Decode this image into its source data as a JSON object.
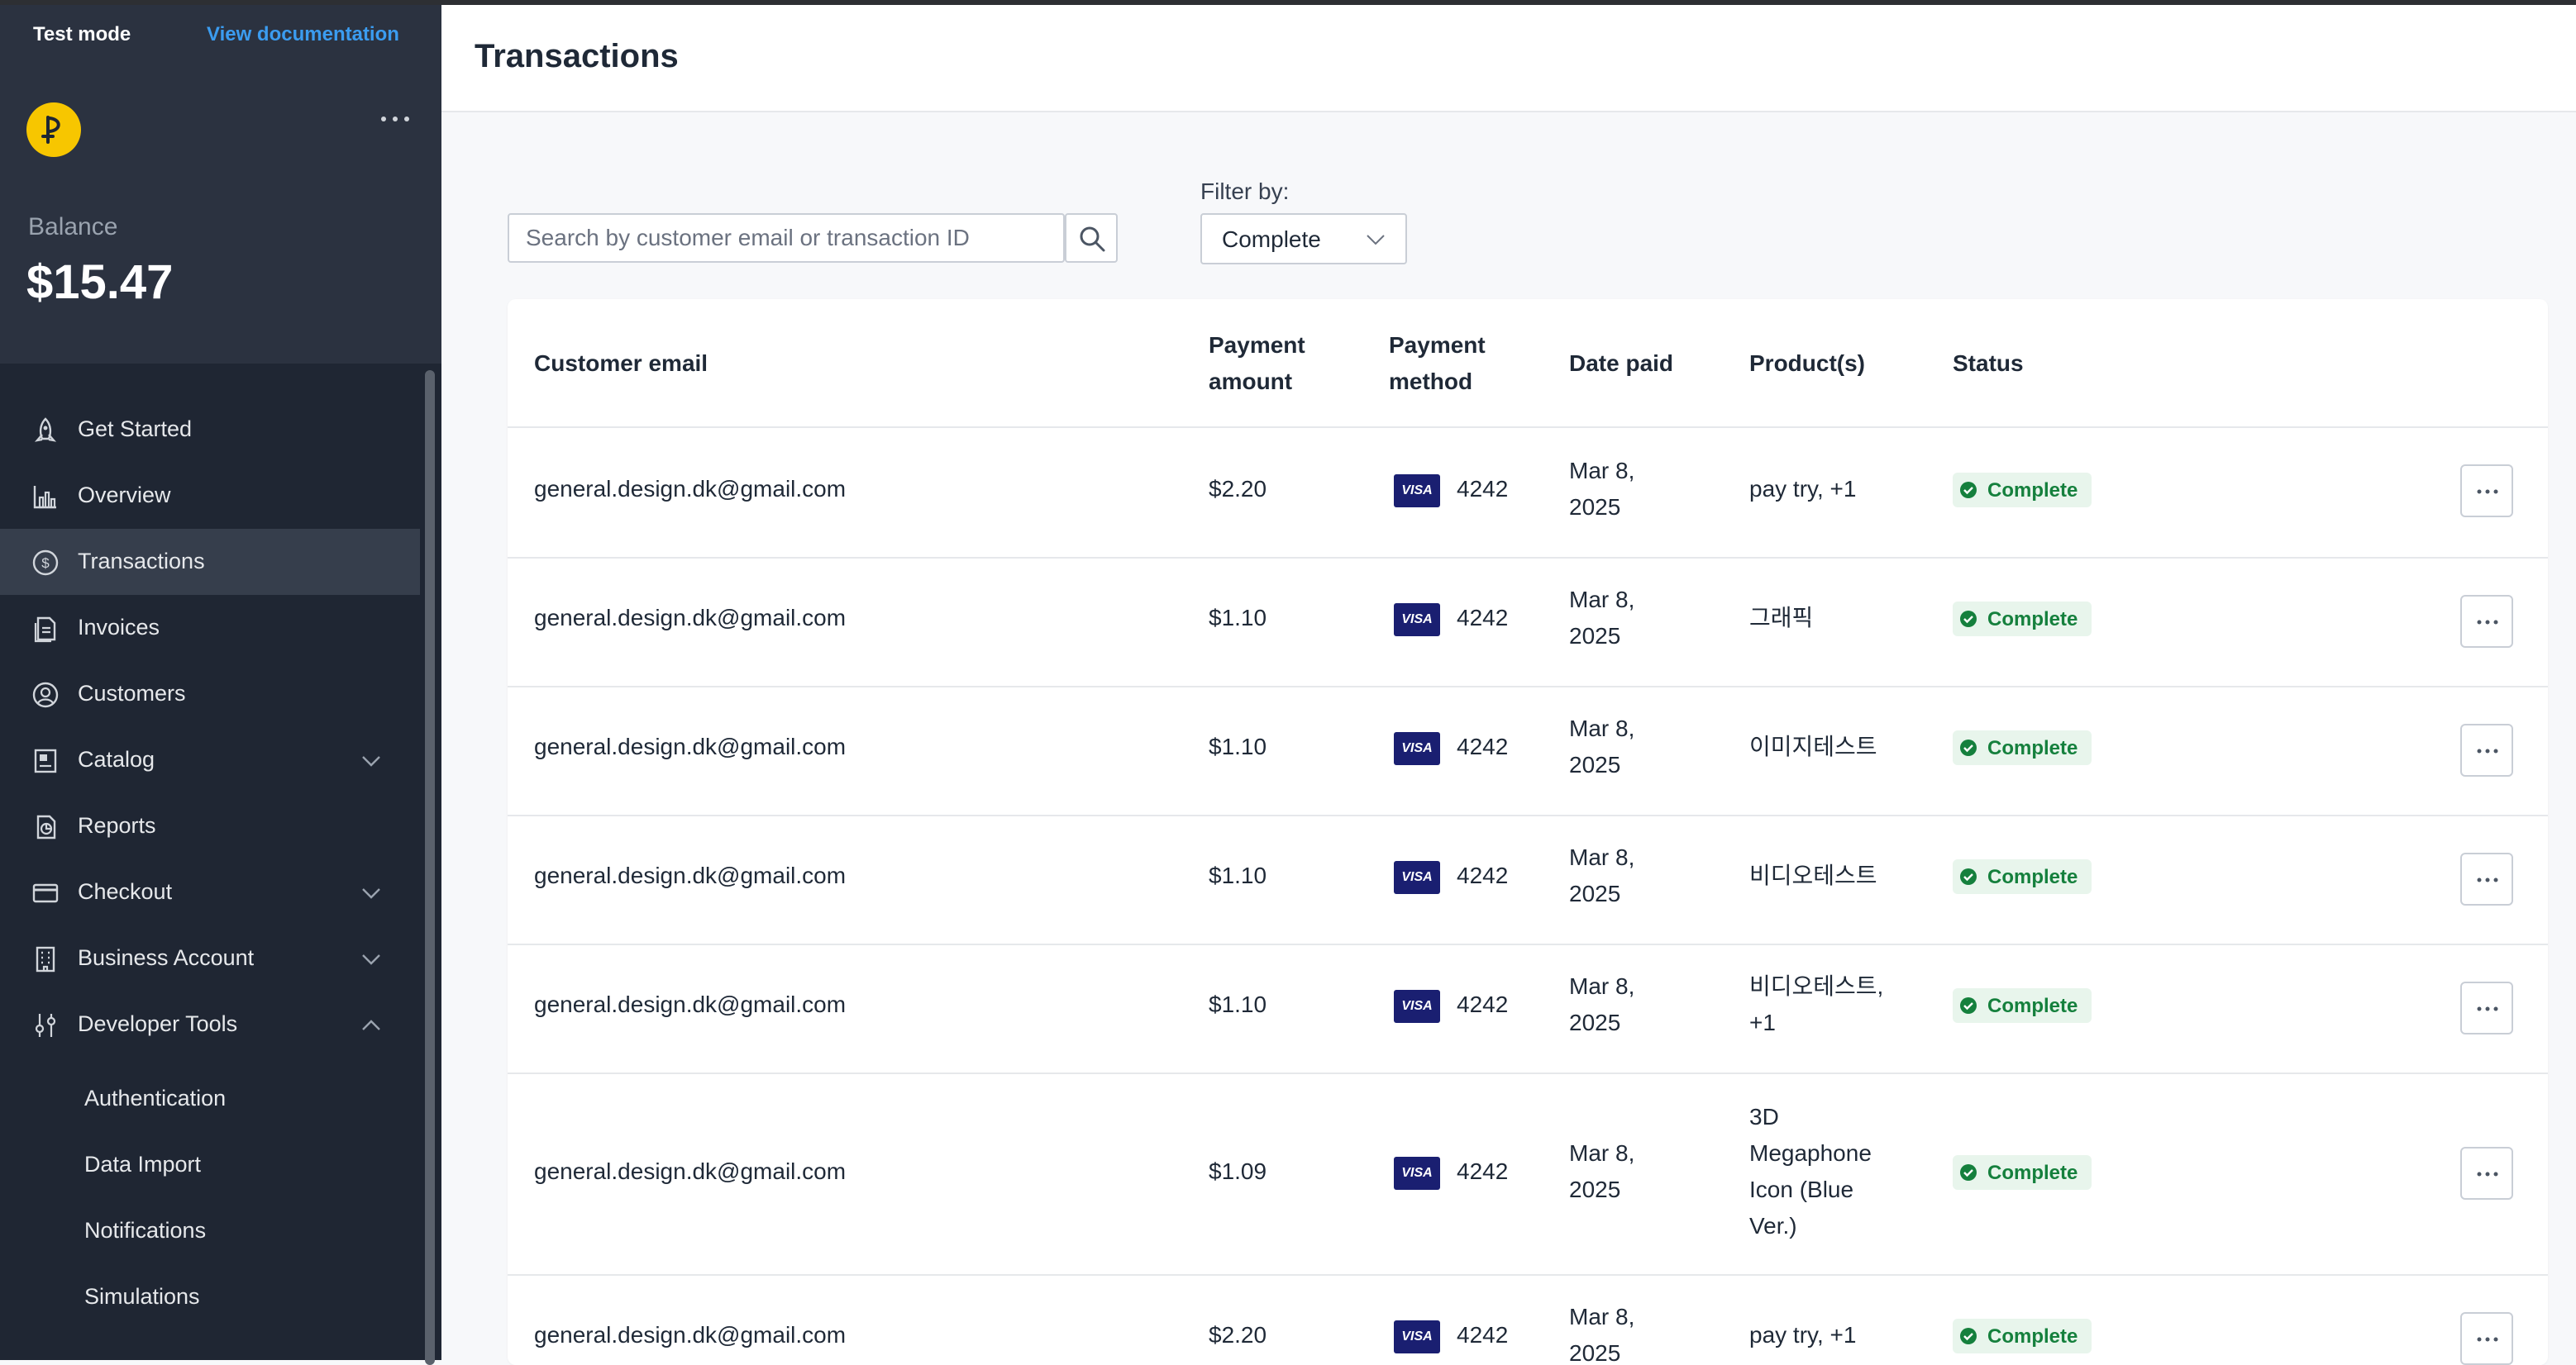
{
  "sidebar": {
    "test_mode": "Test mode",
    "view_documentation": "View documentation",
    "balance_label": "Balance",
    "balance_value": "$15.47",
    "items": [
      {
        "label": "Get Started"
      },
      {
        "label": "Overview"
      },
      {
        "label": "Transactions"
      },
      {
        "label": "Invoices"
      },
      {
        "label": "Customers"
      },
      {
        "label": "Catalog"
      },
      {
        "label": "Reports"
      },
      {
        "label": "Checkout"
      },
      {
        "label": "Business Account"
      },
      {
        "label": "Developer Tools"
      }
    ],
    "developer_subitems": [
      {
        "label": "Authentication"
      },
      {
        "label": "Data Import"
      },
      {
        "label": "Notifications"
      },
      {
        "label": "Simulations"
      }
    ]
  },
  "page": {
    "title": "Transactions"
  },
  "search": {
    "placeholder": "Search by customer email or transaction ID"
  },
  "filter": {
    "label": "Filter by:",
    "value": "Complete"
  },
  "table": {
    "headers": {
      "email": "Customer email",
      "amount_1": "Payment",
      "amount_2": "amount",
      "method_1": "Payment",
      "method_2": "method",
      "date": "Date paid",
      "products": "Product(s)",
      "status": "Status"
    },
    "card_brand": "VISA",
    "rows": [
      {
        "email": "general.design.dk@gmail.com",
        "amount": "$2.20",
        "last4": "4242",
        "date_1": "Mar 8,",
        "date_2": "2025",
        "products": [
          "pay try, +1"
        ],
        "status": "Complete"
      },
      {
        "email": "general.design.dk@gmail.com",
        "amount": "$1.10",
        "last4": "4242",
        "date_1": "Mar 8,",
        "date_2": "2025",
        "products": [
          "그래픽"
        ],
        "status": "Complete"
      },
      {
        "email": "general.design.dk@gmail.com",
        "amount": "$1.10",
        "last4": "4242",
        "date_1": "Mar 8,",
        "date_2": "2025",
        "products": [
          "이미지테스트"
        ],
        "status": "Complete"
      },
      {
        "email": "general.design.dk@gmail.com",
        "amount": "$1.10",
        "last4": "4242",
        "date_1": "Mar 8,",
        "date_2": "2025",
        "products": [
          "비디오테스트"
        ],
        "status": "Complete"
      },
      {
        "email": "general.design.dk@gmail.com",
        "amount": "$1.10",
        "last4": "4242",
        "date_1": "Mar 8,",
        "date_2": "2025",
        "products": [
          "비디오테스트,",
          "+1"
        ],
        "status": "Complete"
      },
      {
        "email": "general.design.dk@gmail.com",
        "amount": "$1.09",
        "last4": "4242",
        "date_1": "Mar 8,",
        "date_2": "2025",
        "products": [
          "3D",
          "Megaphone",
          "Icon (Blue",
          "Ver.)"
        ],
        "status": "Complete"
      },
      {
        "email": "general.design.dk@gmail.com",
        "amount": "$2.20",
        "last4": "4242",
        "date_1": "Mar 8,",
        "date_2": "2025",
        "products": [
          "pay try, +1"
        ],
        "status": "Complete"
      }
    ]
  },
  "colors": {
    "sidebar_bg": "#1f2633",
    "sidebar_panel": "#2b3240",
    "active_item": "#363e4c",
    "link": "#3b9cf0",
    "logo": "#f7c600",
    "status_green": "#15803d",
    "visa_navy": "#1a1f71"
  },
  "icons": [
    "rocket-icon",
    "bar-chart-icon",
    "dollar-circle-icon",
    "invoice-icon",
    "user-circle-icon",
    "catalog-icon",
    "reports-icon",
    "credit-card-icon",
    "building-icon",
    "sliders-icon",
    "search-icon",
    "chevron-down-icon",
    "chevron-up-icon",
    "more-horizontal-icon",
    "check-circle-icon"
  ]
}
